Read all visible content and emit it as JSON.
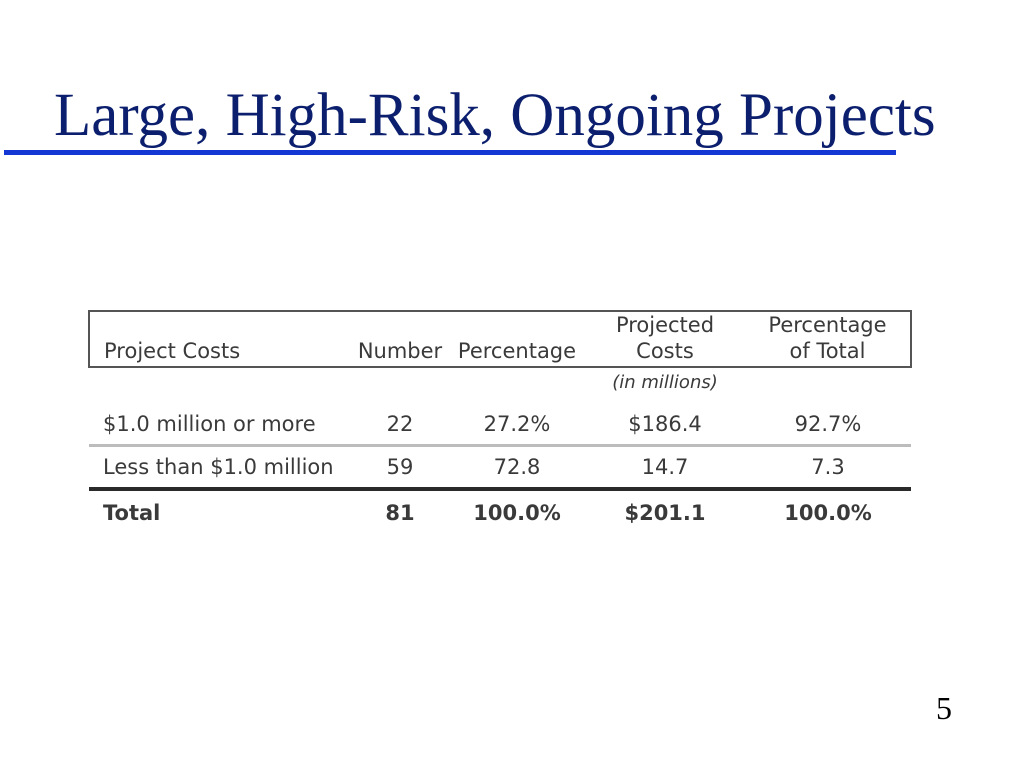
{
  "slide": {
    "title": "Large, High-Risk, Ongoing Projects",
    "page_number": "5",
    "colors": {
      "title": "#0b1f6e",
      "rule": "#1436d2"
    }
  },
  "table": {
    "headers": {
      "project_costs": "Project Costs",
      "number": "Number",
      "percentage": "Percentage",
      "projected_costs_line1": "Projected",
      "projected_costs_line2": "Costs",
      "percentage_total_line1": "Percentage",
      "percentage_total_line2": "of Total"
    },
    "units_note": "(in millions)",
    "rows": [
      {
        "label": "$1.0 million or more",
        "number": "22",
        "percentage": "27.2%",
        "projected_costs": "$186.4",
        "percentage_of_total": "92.7%"
      },
      {
        "label": "Less than $1.0 million",
        "number": "59",
        "percentage": "72.8",
        "projected_costs": "14.7",
        "percentage_of_total": "7.3"
      }
    ],
    "total": {
      "label": "Total",
      "number": "81",
      "percentage": "100.0%",
      "projected_costs": "$201.1",
      "percentage_of_total": "100.0%"
    }
  }
}
